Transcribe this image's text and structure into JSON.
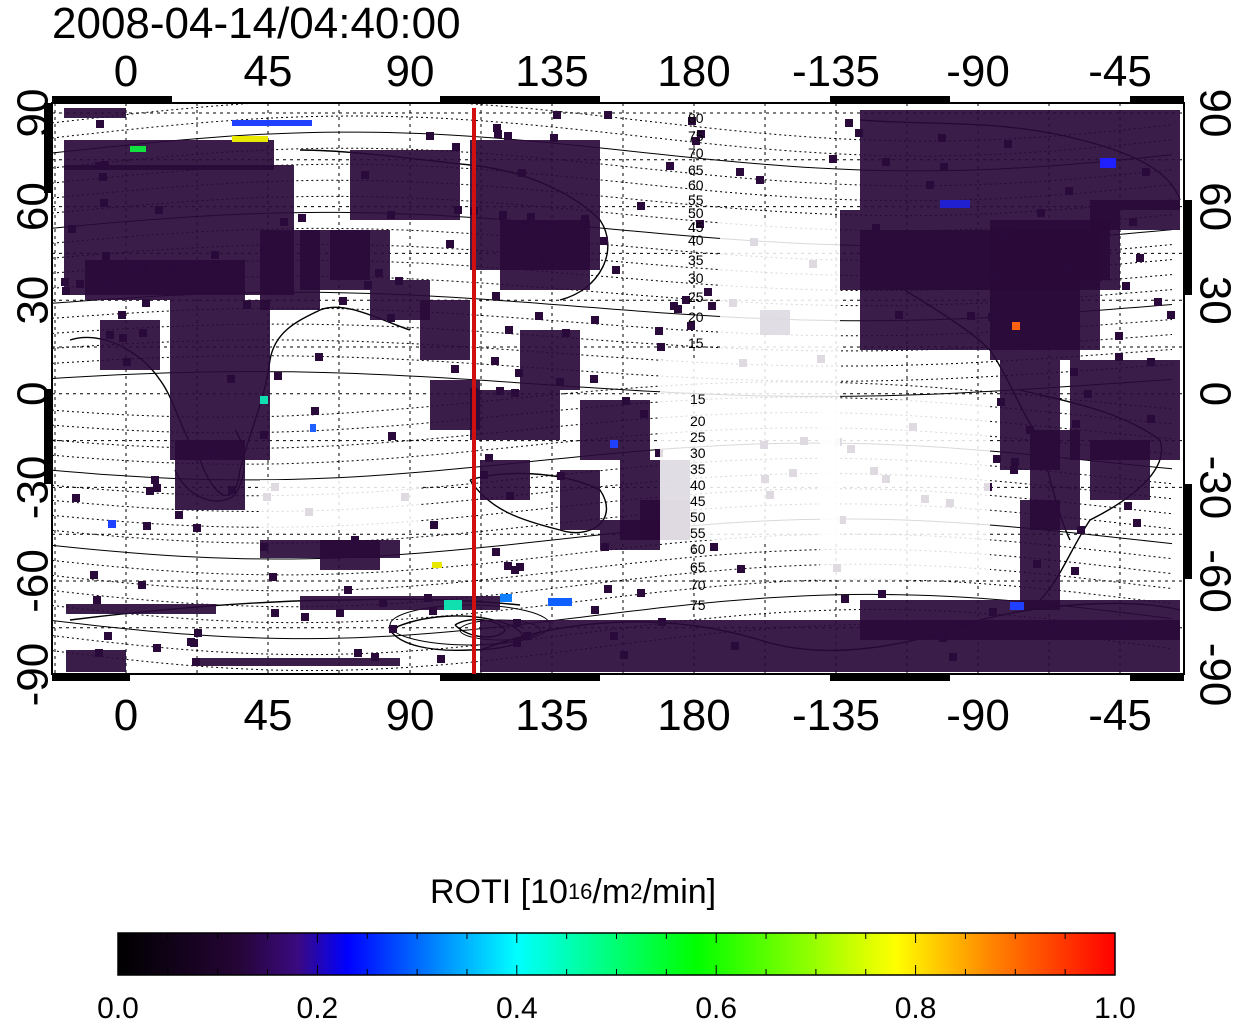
{
  "title": "2008-04-14/04:40:00",
  "map": {
    "x_tick_labels": [
      "0",
      "45",
      "90",
      "135",
      "180",
      "-135",
      "-90",
      "-45"
    ],
    "y_tick_labels": [
      "90",
      "60",
      "30",
      "0",
      "-30",
      "-60",
      "-90"
    ],
    "marker_line_color": "#d01010",
    "magnetic_latitude_labels_north": [
      "80",
      "75",
      "70",
      "65",
      "60",
      "55",
      "50",
      "45",
      "40",
      "35",
      "30",
      "25",
      "20",
      "15"
    ],
    "magnetic_latitude_labels_south": [
      "15",
      "20",
      "25",
      "30",
      "35",
      "40",
      "45",
      "50",
      "55",
      "60",
      "65",
      "70",
      "75"
    ],
    "data_color": "#2a0a3a"
  },
  "colorbar": {
    "title_prefix": "ROTI  [10",
    "title_sup1": "16",
    "title_mid": "/m",
    "title_sup2": "2",
    "title_suffix": "/min]",
    "tick_labels": [
      "0.0",
      "0.2",
      "0.4",
      "0.6",
      "0.8",
      "1.0"
    ],
    "min": 0.0,
    "max": 1.0,
    "colors": [
      "#000000",
      "#3a0a70",
      "#0000ff",
      "#00ffff",
      "#00ff00",
      "#ffff00",
      "#ff8000",
      "#ff0000"
    ]
  }
}
